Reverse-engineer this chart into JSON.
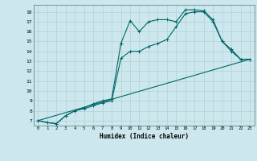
{
  "xlabel": "Humidex (Indice chaleur)",
  "bg_color": "#cce8ee",
  "line_color": "#006666",
  "xlim": [
    -0.5,
    23.5
  ],
  "ylim": [
    6.5,
    18.7
  ],
  "yticks": [
    7,
    8,
    9,
    10,
    11,
    12,
    13,
    14,
    15,
    16,
    17,
    18
  ],
  "xticks": [
    0,
    1,
    2,
    3,
    4,
    5,
    6,
    7,
    8,
    9,
    10,
    11,
    12,
    13,
    14,
    15,
    16,
    17,
    18,
    19,
    20,
    21,
    22,
    23
  ],
  "line1_x": [
    0,
    1,
    2,
    3,
    4,
    5,
    6,
    7,
    8,
    9,
    10,
    11,
    12,
    13,
    14,
    15,
    16,
    17,
    18,
    19,
    20,
    21,
    22,
    23
  ],
  "line1_y": [
    7.0,
    6.8,
    6.7,
    7.5,
    8.0,
    8.3,
    8.7,
    9.0,
    9.2,
    14.8,
    17.1,
    16.0,
    17.0,
    17.2,
    17.2,
    17.0,
    18.2,
    18.2,
    18.1,
    17.2,
    15.0,
    14.2,
    13.2,
    13.2
  ],
  "line2_x": [
    0,
    1,
    2,
    3,
    4,
    5,
    6,
    7,
    8,
    9,
    10,
    11,
    12,
    13,
    14,
    15,
    16,
    17,
    18,
    19,
    20,
    21,
    22,
    23
  ],
  "line2_y": [
    7.0,
    6.8,
    6.7,
    7.5,
    8.0,
    8.2,
    8.5,
    8.8,
    9.0,
    13.3,
    14.0,
    14.0,
    14.5,
    14.8,
    15.2,
    16.5,
    17.8,
    18.0,
    18.0,
    17.0,
    15.0,
    14.0,
    13.2,
    13.2
  ],
  "line3_x": [
    0,
    23
  ],
  "line3_y": [
    7.0,
    13.2
  ],
  "grid_color": "#b0c8cc",
  "marker": "+"
}
